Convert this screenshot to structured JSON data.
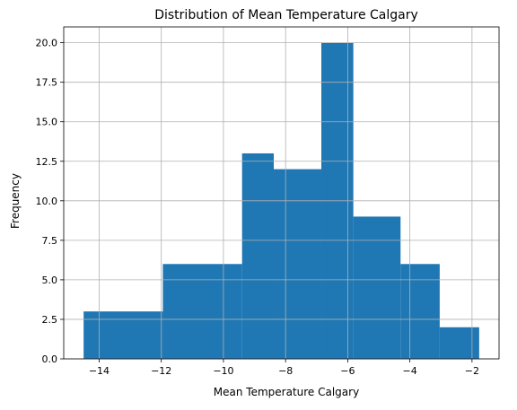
{
  "chart_data": {
    "type": "bar",
    "title": "Distribution of Mean Temperature Calgary",
    "xlabel": "Mean Temperature Calgary",
    "ylabel": "Frequency",
    "bins": [
      {
        "x0": -14.5,
        "x1": -11.95,
        "count": 3
      },
      {
        "x0": -11.95,
        "x1": -9.4,
        "count": 6
      },
      {
        "x0": -9.4,
        "x1": -8.38,
        "count": 13
      },
      {
        "x0": -8.38,
        "x1": -6.85,
        "count": 12
      },
      {
        "x0": -6.85,
        "x1": -5.82,
        "count": 20
      },
      {
        "x0": -5.82,
        "x1": -4.3,
        "count": 9
      },
      {
        "x0": -4.3,
        "x1": -3.04,
        "count": 6
      },
      {
        "x0": -3.04,
        "x1": -1.77,
        "count": 2
      }
    ],
    "xlim": [
      -15.14,
      -1.13
    ],
    "ylim": [
      0,
      21
    ],
    "xticks": [
      -14,
      -12,
      -10,
      -8,
      -6,
      -4,
      -2
    ],
    "xtick_labels": [
      "−14",
      "−12",
      "−10",
      "−8",
      "−6",
      "−4",
      "−2"
    ],
    "yticks": [
      0,
      2.5,
      5,
      7.5,
      10,
      12.5,
      15,
      17.5,
      20
    ],
    "ytick_labels": [
      "0.0",
      "2.5",
      "5.0",
      "7.5",
      "10.0",
      "12.5",
      "15.0",
      "17.5",
      "20.0"
    ],
    "grid": true,
    "bar_color": "#1f77b4",
    "grid_color": "#b0b0b0"
  }
}
